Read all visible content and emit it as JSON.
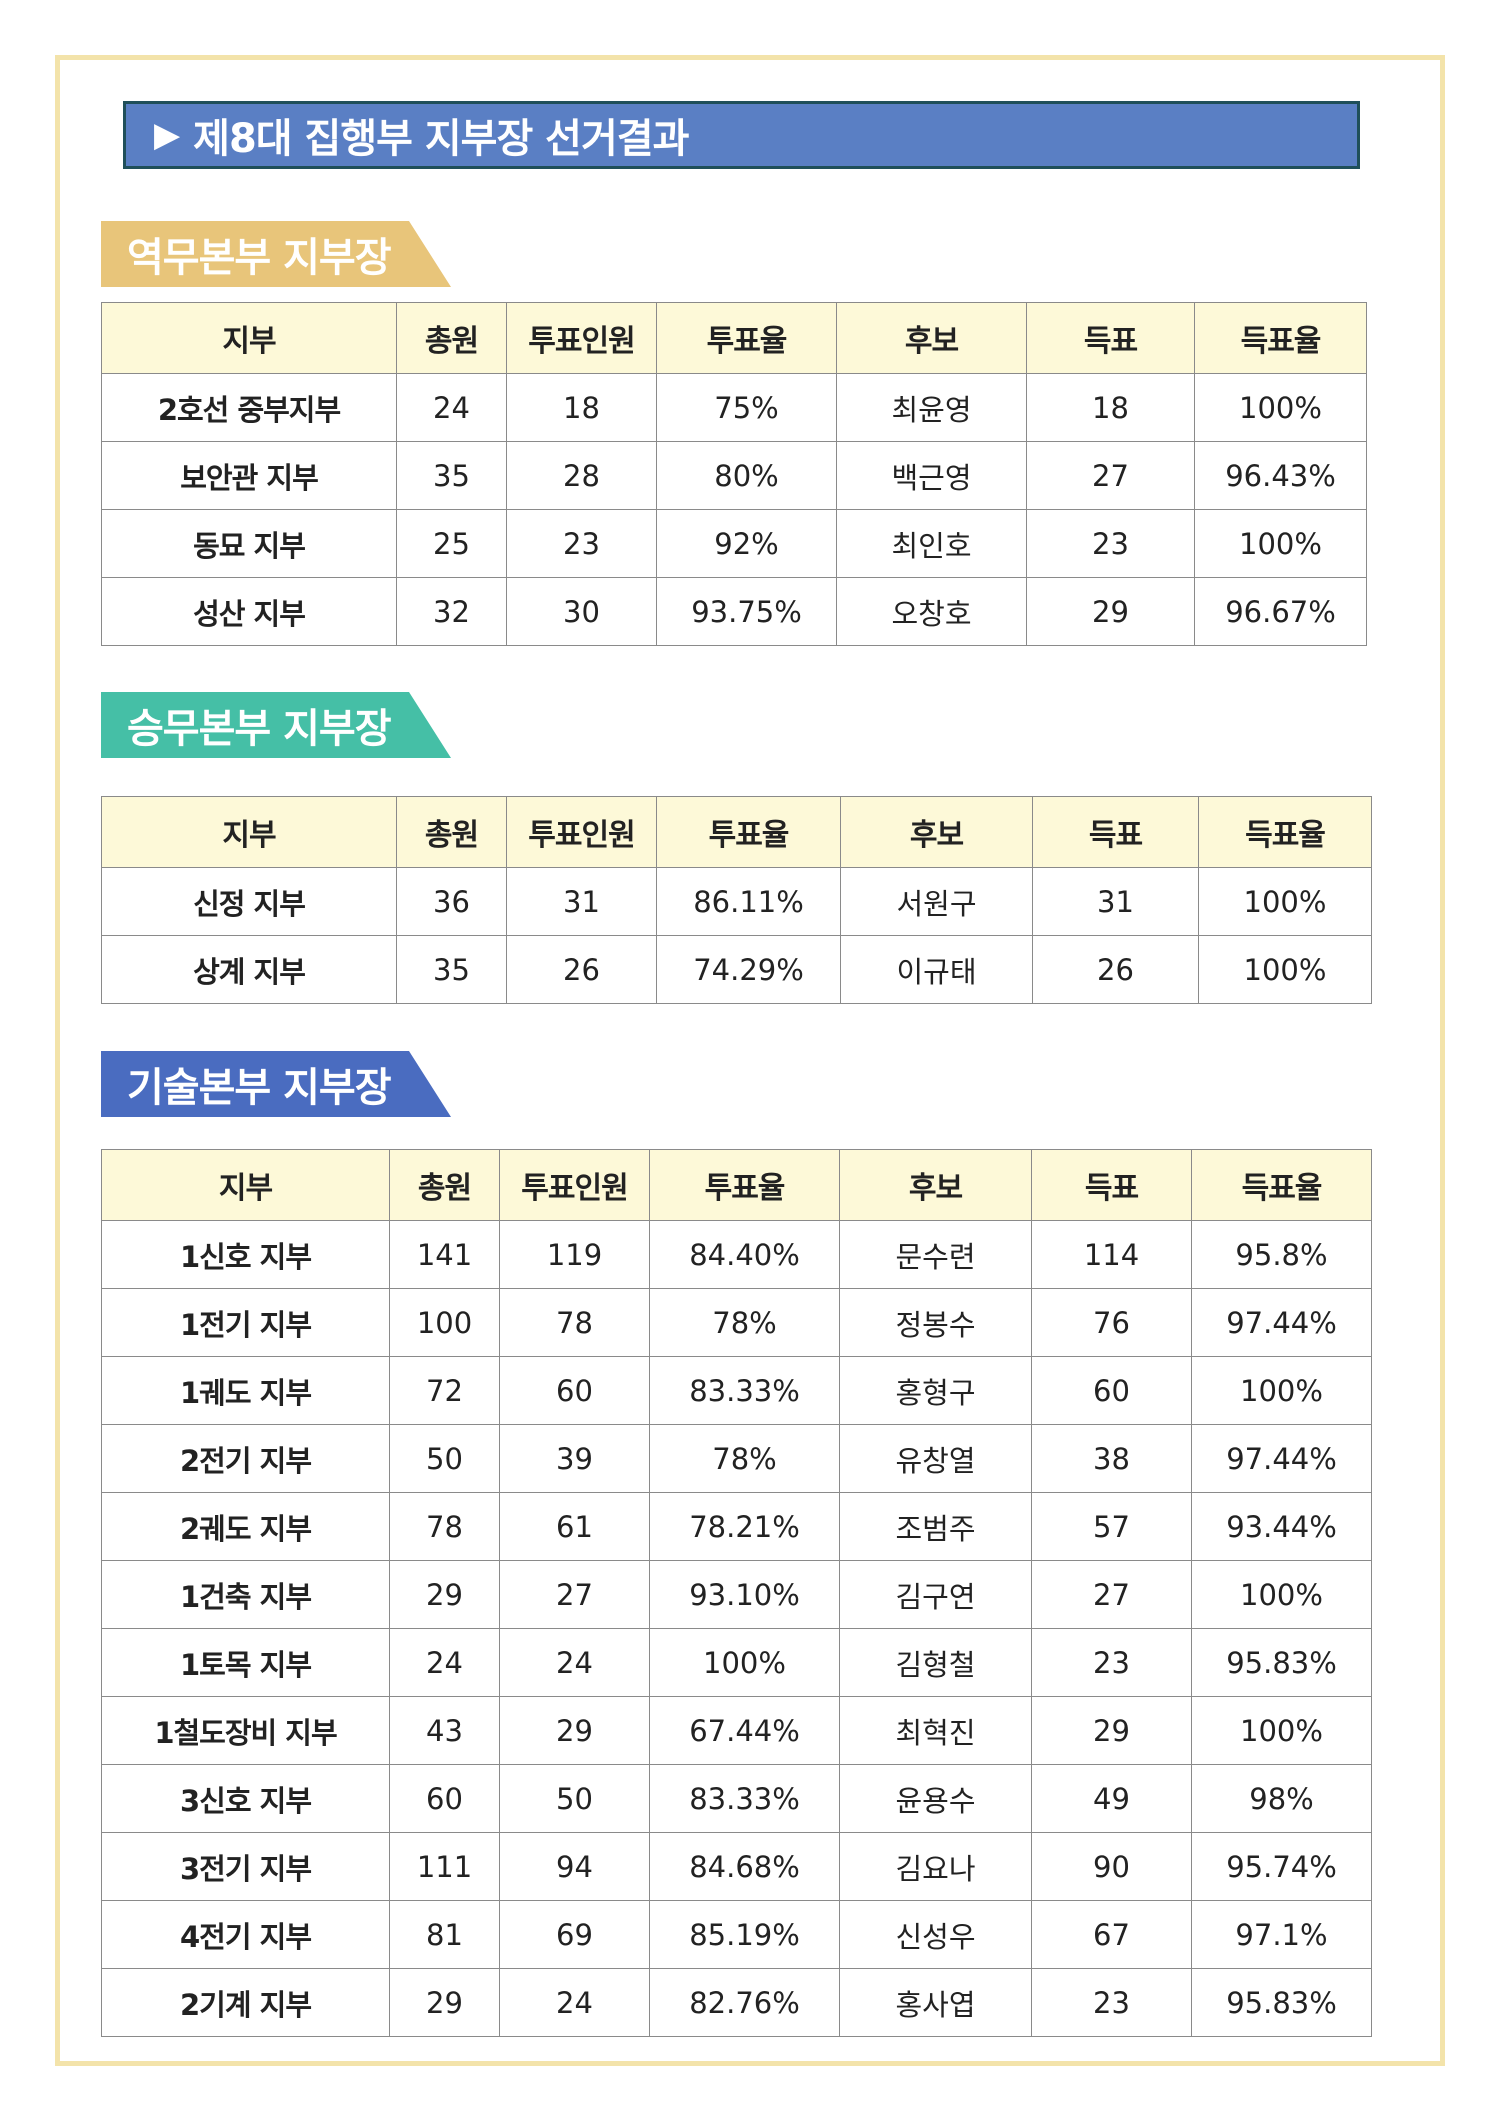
{
  "title": {
    "arrow": "▶",
    "text": "제8대 집행부 지부장 선거결과"
  },
  "colors": {
    "title_bg": "#5a7fc4",
    "tab_yeokmu": "#e8c57a",
    "tab_seungmu": "#45bfa6",
    "tab_gisul": "#4a6cc0",
    "header_bg": "#fdf9d8"
  },
  "headers": [
    "지부",
    "총원",
    "투표인원",
    "투표율",
    "후보",
    "득표",
    "득표율"
  ],
  "sections": [
    {
      "name": "역무본부 지부장",
      "rows": [
        [
          "2호선 중부지부",
          "24",
          "18",
          "75%",
          "최윤영",
          "18",
          "100%"
        ],
        [
          "보안관 지부",
          "35",
          "28",
          "80%",
          "백근영",
          "27",
          "96.43%"
        ],
        [
          "동묘 지부",
          "25",
          "23",
          "92%",
          "최인호",
          "23",
          "100%"
        ],
        [
          "성산 지부",
          "32",
          "30",
          "93.75%",
          "오창호",
          "29",
          "96.67%"
        ]
      ]
    },
    {
      "name": "승무본부 지부장",
      "rows": [
        [
          "신정 지부",
          "36",
          "31",
          "86.11%",
          "서원구",
          "31",
          "100%"
        ],
        [
          "상계 지부",
          "35",
          "26",
          "74.29%",
          "이규태",
          "26",
          "100%"
        ]
      ]
    },
    {
      "name": "기술본부 지부장",
      "rows": [
        [
          "1신호 지부",
          "141",
          "119",
          "84.40%",
          "문수련",
          "114",
          "95.8%"
        ],
        [
          "1전기 지부",
          "100",
          "78",
          "78%",
          "정봉수",
          "76",
          "97.44%"
        ],
        [
          "1궤도 지부",
          "72",
          "60",
          "83.33%",
          "홍형구",
          "60",
          "100%"
        ],
        [
          "2전기 지부",
          "50",
          "39",
          "78%",
          "유창열",
          "38",
          "97.44%"
        ],
        [
          "2궤도 지부",
          "78",
          "61",
          "78.21%",
          "조범주",
          "57",
          "93.44%"
        ],
        [
          "1건축 지부",
          "29",
          "27",
          "93.10%",
          "김구연",
          "27",
          "100%"
        ],
        [
          "1토목 지부",
          "24",
          "24",
          "100%",
          "김형철",
          "23",
          "95.83%"
        ],
        [
          "1철도장비 지부",
          "43",
          "29",
          "67.44%",
          "최혁진",
          "29",
          "100%"
        ],
        [
          "3신호 지부",
          "60",
          "50",
          "83.33%",
          "윤용수",
          "49",
          "98%"
        ],
        [
          "3전기 지부",
          "111",
          "94",
          "84.68%",
          "김요나",
          "90",
          "95.74%"
        ],
        [
          "4전기 지부",
          "81",
          "69",
          "85.19%",
          "신성우",
          "67",
          "97.1%"
        ],
        [
          "2기계 지부",
          "29",
          "24",
          "82.76%",
          "홍사엽",
          "23",
          "95.83%"
        ]
      ]
    }
  ]
}
